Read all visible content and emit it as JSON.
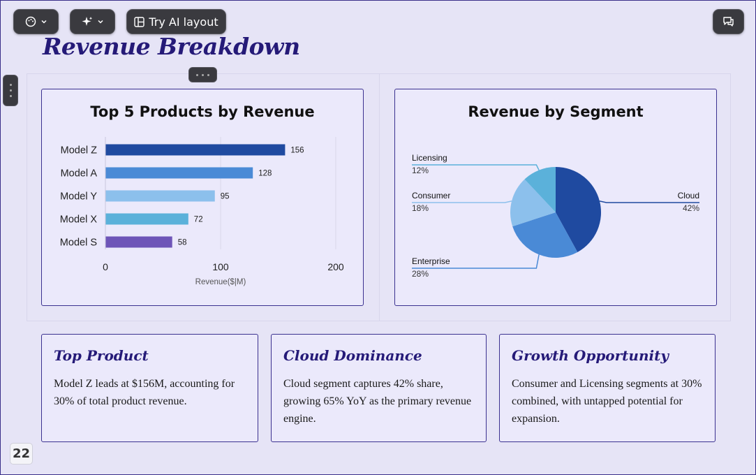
{
  "toolbar": {
    "ai_layout_label": "Try AI layout"
  },
  "page": {
    "title": "Revenue Breakdown",
    "number": "22"
  },
  "chart_data": [
    {
      "type": "bar",
      "orientation": "horizontal",
      "title": "Top 5 Products by Revenue",
      "xlabel": "Revenue($|M)",
      "categories": [
        "Model Z",
        "Model A",
        "Model Y",
        "Model X",
        "Model S"
      ],
      "values": [
        156,
        128,
        95,
        72,
        58
      ],
      "value_labels": [
        "156",
        "128",
        "95",
        "72",
        "58"
      ],
      "colors": [
        "#1f4aa0",
        "#4a8ad6",
        "#8cc0ec",
        "#5bb1da",
        "#6e55b8"
      ],
      "xlim": [
        0,
        200
      ],
      "xticks": [
        "0",
        "100",
        "200"
      ],
      "grid": true
    },
    {
      "type": "pie",
      "title": "Revenue by Segment",
      "labels": [
        "Cloud",
        "Enterprise",
        "Consumer",
        "Licensing"
      ],
      "values": [
        42,
        28,
        18,
        12
      ],
      "value_labels": [
        "42%",
        "28%",
        "18%",
        "12%"
      ],
      "colors": [
        "#1f4aa0",
        "#4a8ad6",
        "#8cc0ec",
        "#5bb1da"
      ]
    }
  ],
  "insights": [
    {
      "title": "Top Product",
      "body": "Model Z leads at $156M, accounting for 30% of total product revenue."
    },
    {
      "title": "Cloud Dominance",
      "body": "Cloud segment captures 42% share, growing 65% YoY as the primary revenue engine."
    },
    {
      "title": "Growth Opportunity",
      "body": "Consumer and Licensing segments at 30% combined, with untapped potential for expansion."
    }
  ]
}
